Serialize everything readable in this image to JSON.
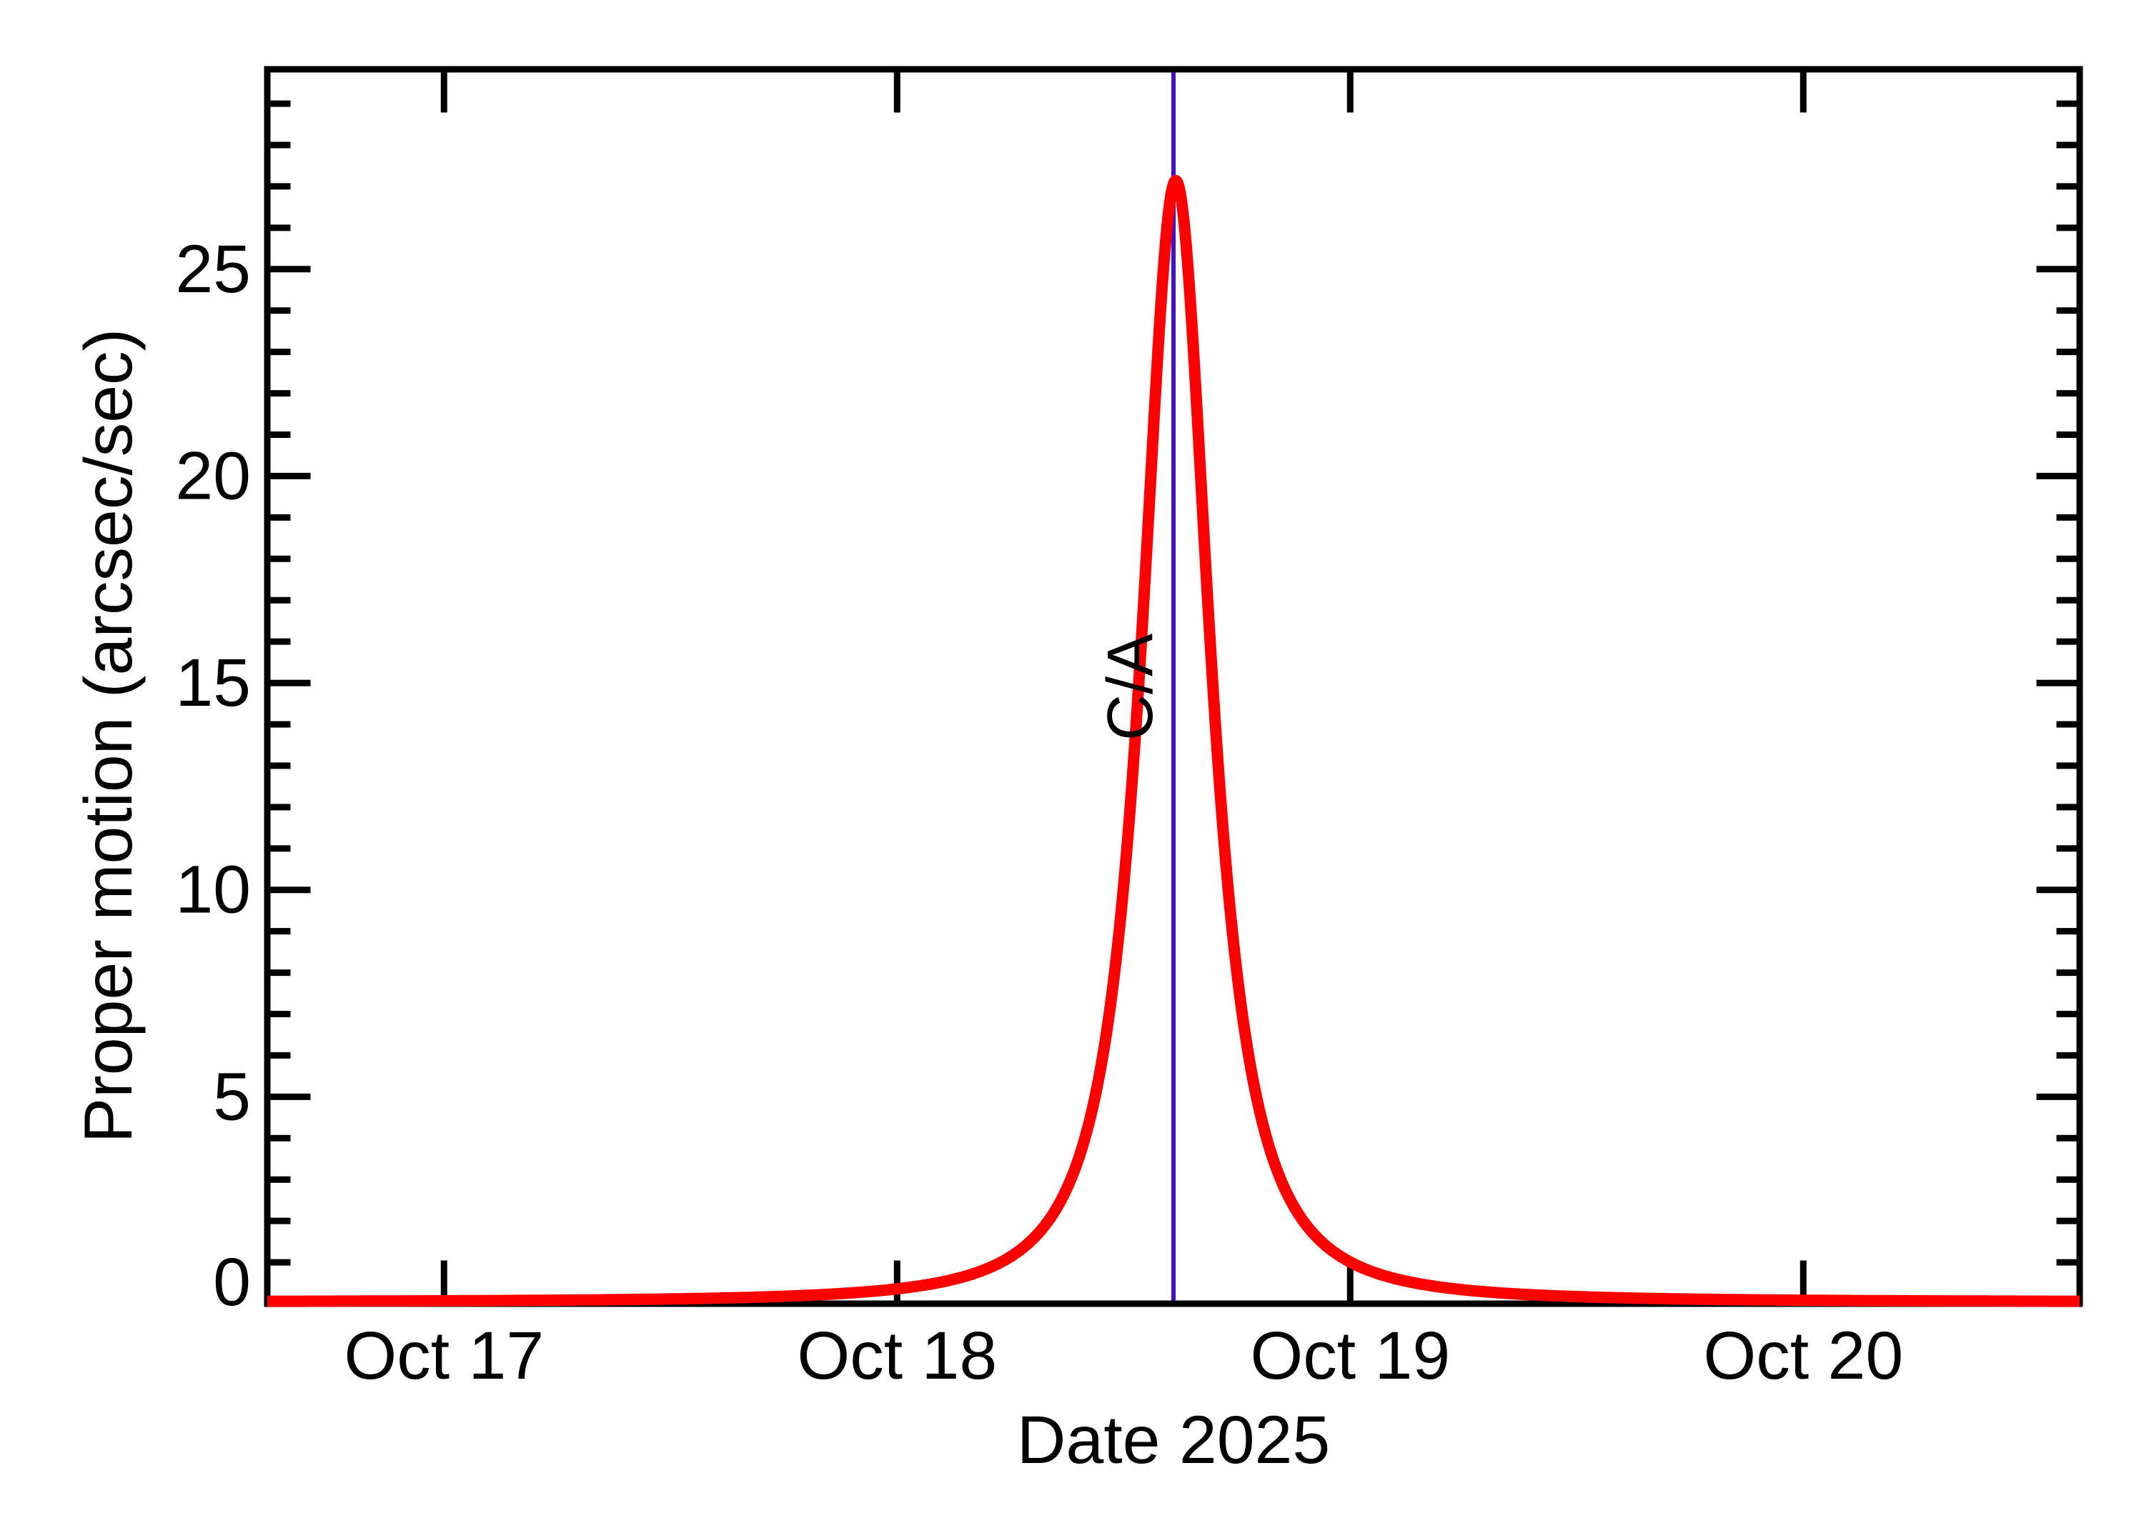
{
  "figure": {
    "background": "#ffffff",
    "axis_color": "#000000"
  },
  "chart_data": {
    "type": "line",
    "title": "",
    "xlabel": "Date 2025",
    "ylabel": "Proper motion (arcsec/sec)",
    "x_axis": {
      "unit_note": "days after Oct 17 2025 00:00",
      "min": -0.39,
      "max": 3.61,
      "major_ticks": [
        0,
        1,
        2,
        3
      ],
      "tick_labels": [
        "Oct 17",
        "Oct 18",
        "Oct 19",
        "Oct 20"
      ],
      "minor_ticks": false,
      "mirrored_top": true
    },
    "y_axis": {
      "min": 0,
      "max": 29.83,
      "major_ticks": [
        0,
        5,
        10,
        15,
        20,
        25
      ],
      "tick_labels": [
        "0",
        "5",
        "10",
        "15",
        "20",
        "25"
      ],
      "minor_tick_step": 1,
      "mirrored_right": true
    },
    "grid": false,
    "legend": false,
    "series": [
      {
        "name": "proper motion",
        "color": "#ff0000",
        "peak": {
          "x": 1.615,
          "x_readout": "Oct 18.6",
          "value": 27.1
        },
        "model": {
          "type": "generalized_lorentzian",
          "baseline": 0.04,
          "amplitude": 27.1,
          "center": 1.615,
          "width": 0.104,
          "exponent": 1.24
        },
        "samples": [
          [
            -0.39,
            0.058
          ],
          [
            -0.25,
            0.061
          ],
          [
            0.0,
            0.07
          ],
          [
            0.25,
            0.086
          ],
          [
            0.5,
            0.115
          ],
          [
            0.75,
            0.18
          ],
          [
            1.0,
            0.36
          ],
          [
            1.2,
            0.86
          ],
          [
            1.35,
            2.31
          ],
          [
            1.45,
            5.86
          ],
          [
            1.5,
            10.35
          ],
          [
            1.552,
            18.4
          ],
          [
            1.582,
            24.1
          ],
          [
            1.615,
            27.14
          ],
          [
            1.652,
            23.4
          ],
          [
            1.702,
            14.1
          ],
          [
            1.752,
            7.83
          ],
          [
            1.852,
            2.87
          ],
          [
            2.0,
            1.0
          ],
          [
            2.25,
            0.33
          ],
          [
            2.5,
            0.17
          ],
          [
            2.75,
            0.11
          ],
          [
            3.0,
            0.084
          ],
          [
            3.25,
            0.069
          ],
          [
            3.61,
            0.058
          ]
        ]
      }
    ],
    "annotations": [
      {
        "type": "vertical-line",
        "label": "C/A",
        "x": 1.61,
        "x_readout": "Oct 18.61",
        "label_y_value": 14.9,
        "color": "#4410c8"
      }
    ]
  }
}
